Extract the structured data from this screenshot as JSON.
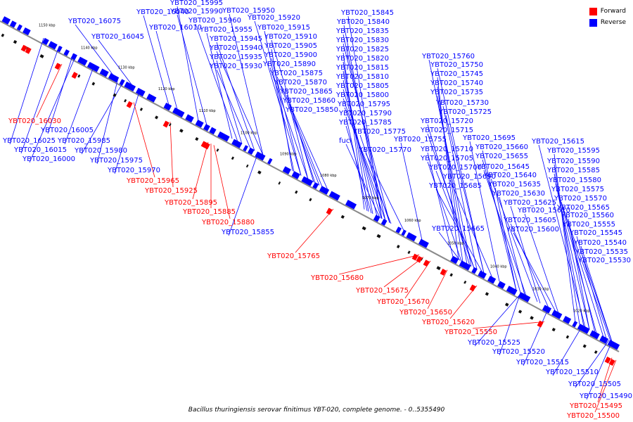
{
  "caption": "Bacillus thuringiensis serovar finitimus YBT-020, complete genome. - 0..5355490",
  "legend": [
    {
      "label": "Forward",
      "color": "#ff0000"
    },
    {
      "label": "Reverse",
      "color": "#0000ff"
    }
  ],
  "colors": {
    "forward": "#ff0000",
    "reverse": "#0000ff",
    "backbone": "#8a8a8a"
  },
  "ticks": [
    "1150 kbp",
    "1140 kbp",
    "1130 kbp",
    "1120 kbp",
    "1110 kbp",
    "1100 kbp",
    "1090 kbp",
    "1080 kbp",
    "1070 kbp",
    "1060 kbp",
    "1050 kbp",
    "1040 kbp",
    "1030 kbp",
    "1020 kbp"
  ],
  "reverse_labels": [
    "YBT020_15995",
    "YBT020_16040",
    "YBT020_15990",
    "YBT020_15950",
    "YBT020_16075",
    "YBT020_15960",
    "YBT020_15920",
    "YBT020_16010",
    "YBT020_15955",
    "YBT020_15915",
    "YBT020_16045",
    "YBT020_15945",
    "YBT020_15910",
    "YBT020_15940",
    "YBT020_15905",
    "YBT020_15935",
    "YBT020_15900",
    "YBT020_15930",
    "YBT020_15890",
    "YBT020_15875",
    "YBT020_15870",
    "YBT020_15865",
    "YBT020_15860",
    "YBT020_15850",
    "YBT020_15845",
    "YBT020_15840",
    "YBT020_15835",
    "YBT020_15830",
    "YBT020_15825",
    "YBT020_15820",
    "YBT020_15815",
    "YBT020_15810",
    "YBT020_15805",
    "YBT020_15800",
    "YBT020_15795",
    "YBT020_15790",
    "YBT020_15785",
    "YBT020_15775",
    "fucI",
    "YBT020_15770",
    "YBT020_15760",
    "YBT020_15750",
    "YBT020_15745",
    "YBT020_15740",
    "YBT020_15735",
    "YBT020_15730",
    "YBT020_15725",
    "YBT020_15720",
    "YBT020_15715",
    "YBT020_15755",
    "YBT020_15710",
    "YBT020_15695",
    "YBT020_15705",
    "YBT020_15700",
    "YBT020_15690",
    "YBT020_15685",
    "YBT020_15665",
    "YBT020_16005",
    "YBT020_15985",
    "YBT020_16025",
    "YBT020_16015",
    "YBT020_15980",
    "YBT020_16000",
    "YBT020_15975",
    "YBT020_15970",
    "YBT020_15855",
    "YBT020_15660",
    "YBT020_15655",
    "YBT020_15645",
    "YBT020_15640",
    "YBT020_15635",
    "YBT020_15630",
    "YBT020_15625",
    "YBT020_15610",
    "YBT020_15605",
    "YBT020_15600",
    "YBT020_15615",
    "YBT020_15595",
    "YBT020_15590",
    "YBT020_15585",
    "YBT020_15580",
    "YBT020_15575",
    "YBT020_15570",
    "YBT020_15565",
    "YBT020_15560",
    "YBT020_15555",
    "YBT020_15545",
    "YBT020_15540",
    "YBT020_15535",
    "YBT020_15530",
    "YBT020_15525",
    "YBT020_15520",
    "YBT020_15515",
    "YBT020_15510",
    "YBT020_15505",
    "YBT020_15490"
  ],
  "forward_labels": [
    "YBT020_16030",
    "YBT020_15965",
    "YBT020_15925",
    "YBT020_15895",
    "YBT020_15885",
    "YBT020_15880",
    "YBT020_15765",
    "YBT020_15680",
    "YBT020_15675",
    "YBT020_15670",
    "YBT020_15650",
    "YBT020_15620",
    "YBT020_15550",
    "YBT020_15495",
    "YBT020_15500"
  ]
}
